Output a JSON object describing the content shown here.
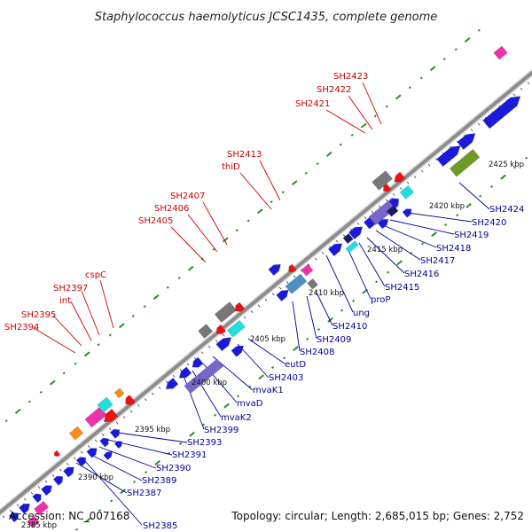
{
  "title": "Staphylococcus haemolyticus JCSC1435, complete genome",
  "accession": "Accession: NC_007168",
  "topology": "Topology: circular; Length: 2,685,015 bp; Genes: 2,752",
  "colors": {
    "red_label": "#cc0000",
    "blue_label": "#000099",
    "backbone": "#8c8c8c",
    "gc_dot": "#2e8b2e",
    "cds_blue": "#1a1adc",
    "cds_red": "#ee1111",
    "cds_gray": "#777777",
    "cds_pink": "#ee33aa",
    "cds_cyan": "#22dddd",
    "cds_violet": "#7766cc",
    "cds_olive": "#6e9a2a",
    "cds_orange": "#ff8c1a",
    "cds_steel": "#4d8fbf",
    "cds_navy": "#1a1a66"
  },
  "kbp_labels": [
    "2385 kbp",
    "2390 kbp",
    "2395 kbp",
    "2400 kbp",
    "2405 kbp",
    "2410 kbp",
    "2415 kbp",
    "2420 kbp",
    "2425 kbp"
  ],
  "red_genes": [
    "SH2394",
    "SH2395",
    "int",
    "SH2397",
    "cspC",
    "SH2405",
    "SH2406",
    "SH2407",
    "thiD",
    "SH2413",
    "SH2421",
    "SH2422",
    "SH2423"
  ],
  "blue_genes": [
    "SH2385",
    "SH2387",
    "SH2389",
    "SH2390",
    "SH2391",
    "SH2393",
    "SH2399",
    "mvaK2",
    "mvaD",
    "mvaK1",
    "SH2403",
    "eutD",
    "SH2408",
    "SH2409",
    "SH2410",
    "ung",
    "proP",
    "SH2415",
    "SH2416",
    "SH2417",
    "SH2418",
    "SH2419",
    "SH2420",
    "SH2424"
  ]
}
